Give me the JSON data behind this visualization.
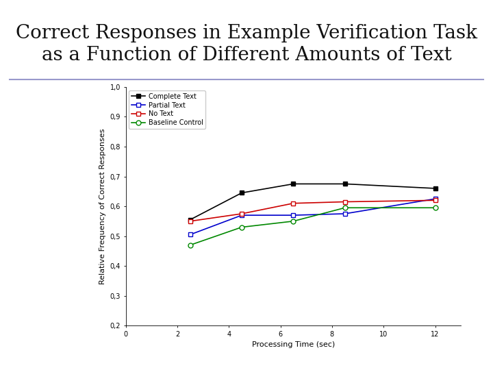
{
  "title_line1": "Correct Responses in Example Verification Task",
  "title_line2": "as a Function of Different Amounts of Text",
  "xlabel": "Processing Time (sec)",
  "ylabel": "Relative Frequency of Correct Responses",
  "x_values": [
    2.5,
    4.5,
    6.5,
    8.5,
    12.0
  ],
  "series": [
    {
      "label": "Complete Text",
      "color": "#000000",
      "marker": "s",
      "filled": true,
      "values": [
        0.555,
        0.645,
        0.675,
        0.675,
        0.66
      ]
    },
    {
      "label": "Partial Text",
      "color": "#0000cc",
      "marker": "s",
      "filled": false,
      "values": [
        0.505,
        0.57,
        0.57,
        0.575,
        0.625
      ]
    },
    {
      "label": "No Text",
      "color": "#cc0000",
      "marker": "s",
      "filled": false,
      "values": [
        0.55,
        0.575,
        0.61,
        0.615,
        0.62
      ]
    },
    {
      "label": "Baseline Control",
      "color": "#008800",
      "marker": "o",
      "filled": false,
      "values": [
        0.47,
        0.53,
        0.55,
        0.595,
        0.595
      ]
    }
  ],
  "xlim": [
    0,
    13
  ],
  "ylim": [
    0.2,
    1.0
  ],
  "xticks": [
    0,
    2,
    4,
    6,
    8,
    10,
    12
  ],
  "yticks": [
    0.2,
    0.3,
    0.4,
    0.5,
    0.6,
    0.7,
    0.8,
    0.9,
    1.0
  ],
  "ytick_labels": [
    "0,2",
    "0,3",
    "0,4",
    "0,5",
    "0,6",
    "0,7",
    "0,8",
    "0,9",
    "1,0"
  ],
  "background_color": "#ffffff",
  "title_fontsize": 20,
  "axis_label_fontsize": 8,
  "tick_fontsize": 7,
  "legend_fontsize": 7,
  "separator_color": "#9999cc",
  "banner_color": "#4444cc",
  "banner_light_color": "#aaaadd"
}
